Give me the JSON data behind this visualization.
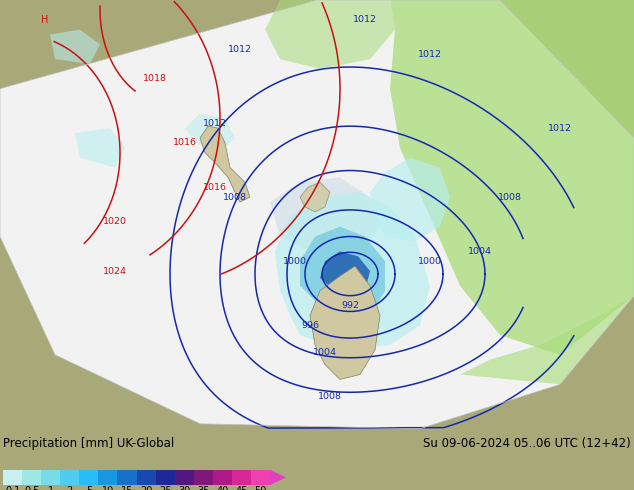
{
  "title_left": "Precipitation [mm] UK-Global",
  "title_right": "Su 09-06-2024 05..06 UTC (12+42)",
  "colorbar_levels": [
    "0.1",
    "0.5",
    "1",
    "2",
    "5",
    "10",
    "15",
    "20",
    "25",
    "30",
    "35",
    "40",
    "45",
    "50"
  ],
  "colorbar_colors": [
    "#c8f0f0",
    "#a0e8e8",
    "#78dce8",
    "#50ccf0",
    "#28bcf8",
    "#1898e0",
    "#1870c8",
    "#1848b0",
    "#202898",
    "#501880",
    "#801878",
    "#b01888",
    "#d82898",
    "#f040b0"
  ],
  "colorbar_arrow_color": "#e040c0",
  "bg_color": "#a8a878",
  "sea_color": "#8888aa",
  "map_white": "#f0f0f0",
  "land_color_light": "#b8c890",
  "land_tan": "#c8b888",
  "green_precip": "#a8dc78",
  "cyan_precip_light": "#b8eef0",
  "cyan_precip": "#78cce0",
  "blue_precip": "#4898d0",
  "dark_blue_precip": "#2060b0",
  "contour_blue": "#1428b0",
  "contour_red": "#c81010",
  "figure_width": 6.34,
  "figure_height": 4.9,
  "dpi": 100,
  "title_fontsize": 8.5,
  "colorbar_label_fontsize": 7,
  "label_font": "DejaVu Sans"
}
